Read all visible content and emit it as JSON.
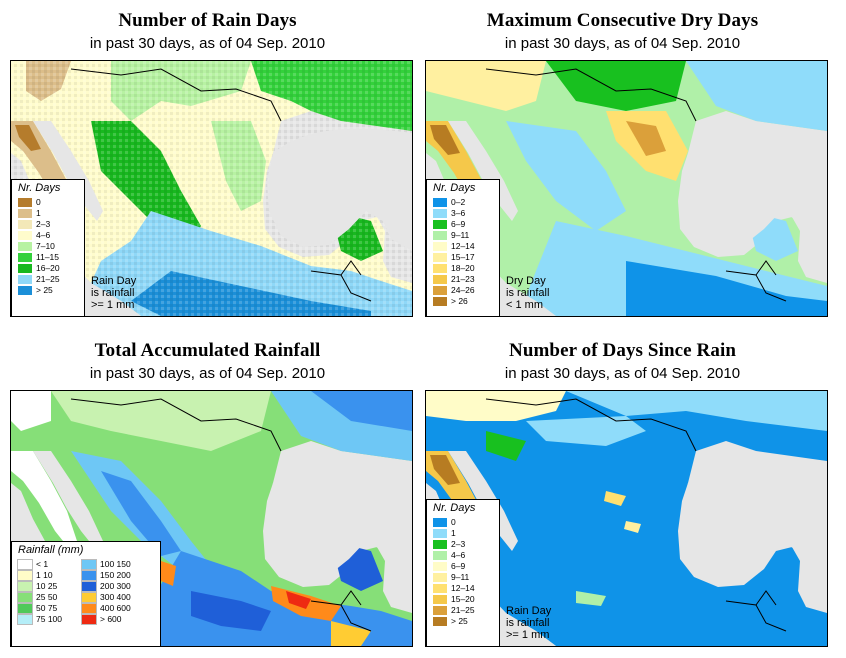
{
  "panels": [
    {
      "title": "Number of Rain Days",
      "subtitle": "in past 30 days, as of  04 Sep. 2010",
      "legend_title": "Nr. Days",
      "classes": [
        {
          "label": "0",
          "color": "#b57c2c"
        },
        {
          "label": "1",
          "color": "#dcbe8a"
        },
        {
          "label": "2–3",
          "color": "#f3e8b8"
        },
        {
          "label": "4–6",
          "color": "#fffccc"
        },
        {
          "label": "7–10",
          "color": "#b7f2a2"
        },
        {
          "label": "11–15",
          "color": "#33d13b"
        },
        {
          "label": "16–20",
          "color": "#18b81f"
        },
        {
          "label": "21–25",
          "color": "#8fd8f8"
        },
        {
          "label": "> 25",
          "color": "#1b8fd8"
        }
      ],
      "note": [
        "Rain Day",
        "is rainfall",
        ">= 1 mm"
      ]
    },
    {
      "title": "Maximum Consecutive Dry Days",
      "subtitle": "in past 30 days, as of  04 Sep. 2010",
      "legend_title": "Nr. Days",
      "classes": [
        {
          "label": "0–2",
          "color": "#0f93e8"
        },
        {
          "label": "3–6",
          "color": "#8fdcfa"
        },
        {
          "label": "6–9",
          "color": "#18c01f"
        },
        {
          "label": "9–11",
          "color": "#b0f0a8"
        },
        {
          "label": "12–14",
          "color": "#fffcc8"
        },
        {
          "label": "15–17",
          "color": "#fff0a0"
        },
        {
          "label": "18–20",
          "color": "#ffe070"
        },
        {
          "label": "21–23",
          "color": "#f5c84a"
        },
        {
          "label": "24–26",
          "color": "#dba03a"
        },
        {
          "label": "> 26",
          "color": "#b77c22"
        }
      ],
      "note": [
        "Dry Day",
        "is rainfall",
        "< 1 mm"
      ]
    },
    {
      "title": "Total Accumulated Rainfall",
      "subtitle": "in past 30 days, as of  04 Sep. 2010",
      "legend_title": "Rainfall (mm)",
      "classes": [
        {
          "label": "< 1",
          "color": "#ffffff"
        },
        {
          "label": "1   10",
          "color": "#fffcc8"
        },
        {
          "label": "10   25",
          "color": "#c8f2b0"
        },
        {
          "label": "25   50",
          "color": "#86df78"
        },
        {
          "label": "50   75",
          "color": "#50c95a"
        },
        {
          "label": "75   100",
          "color": "#b5eef8"
        },
        {
          "label": "100  150",
          "color": "#6ec7f5"
        },
        {
          "label": "150  200",
          "color": "#3a92ee"
        },
        {
          "label": "200  300",
          "color": "#1f5fd8"
        },
        {
          "label": "300  400",
          "color": "#ffcc33"
        },
        {
          "label": "400  600",
          "color": "#ff8a1a"
        },
        {
          "label": "> 600",
          "color": "#ee2a12"
        }
      ],
      "note": []
    },
    {
      "title": "Number of Days Since Rain",
      "subtitle": "in past 30 days, as of  04 Sep. 2010",
      "legend_title": "Nr. Days",
      "classes": [
        {
          "label": "0",
          "color": "#0f93e8"
        },
        {
          "label": "1",
          "color": "#8fdcfa"
        },
        {
          "label": "2–3",
          "color": "#18c01f"
        },
        {
          "label": "4–6",
          "color": "#b0f0a8"
        },
        {
          "label": "6–9",
          "color": "#fffcc8"
        },
        {
          "label": "9–11",
          "color": "#fff0a0"
        },
        {
          "label": "12–14",
          "color": "#ffe070"
        },
        {
          "label": "15–20",
          "color": "#f5c84a"
        },
        {
          "label": "21–25",
          "color": "#dba03a"
        },
        {
          "label": "> 25",
          "color": "#b77c22"
        }
      ],
      "note": [
        "Rain Day",
        "is rainfall",
        ">= 1 mm"
      ]
    }
  ]
}
